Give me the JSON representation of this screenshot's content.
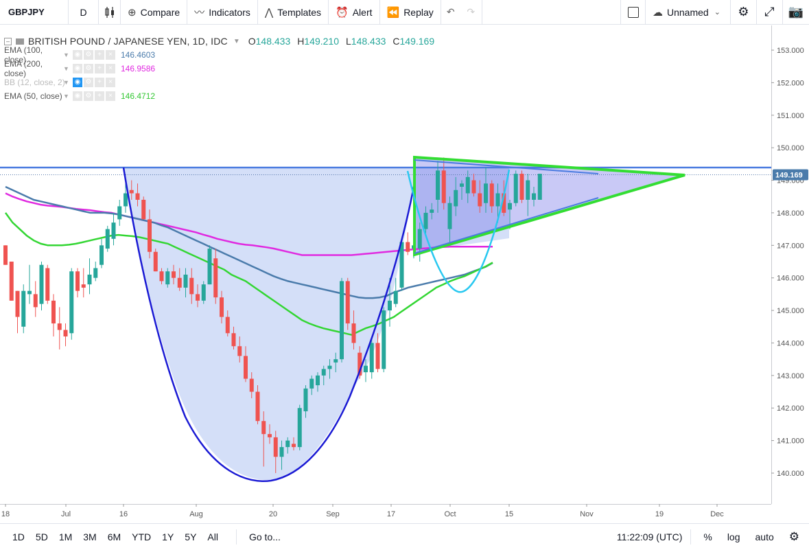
{
  "toolbar": {
    "symbol": "GBPJPY",
    "interval": "D",
    "compare": "Compare",
    "indicators": "Indicators",
    "templates": "Templates",
    "alert": "Alert",
    "replay": "Replay",
    "layout_name": "Unnamed"
  },
  "legend": {
    "title": "BRITISH POUND / JAPANESE YEN, 1D, IDC",
    "o_label": "O",
    "o": "148.433",
    "h_label": "H",
    "h": "149.210",
    "l_label": "L",
    "l": "148.433",
    "c_label": "C",
    "c": "149.169",
    "studies": [
      {
        "name": "EMA (100, close)",
        "value": "146.4603",
        "color": "#4a7bab"
      },
      {
        "name": "EMA (200, close)",
        "value": "146.9586",
        "color": "#e029e0"
      },
      {
        "name": "BB (12, close, 2)",
        "value": "",
        "color": "#bbbbbb"
      },
      {
        "name": "EMA (50, close)",
        "value": "146.4712",
        "color": "#33d633"
      }
    ]
  },
  "bottombar": {
    "ranges": [
      "1D",
      "5D",
      "1M",
      "3M",
      "6M",
      "YTD",
      "1Y",
      "5Y",
      "All"
    ],
    "goto": "Go to...",
    "time": "11:22:09 (UTC)",
    "percent": "%",
    "log": "log",
    "auto": "auto"
  },
  "chart_data": {
    "type": "candlestick",
    "symbol": "GBPJPY",
    "ylim": [
      139.3,
      153.6
    ],
    "y_ticks": [
      "153.000",
      "152.000",
      "151.000",
      "150.000",
      "149.000",
      "148.000",
      "147.000",
      "146.000",
      "145.000",
      "144.000",
      "143.000",
      "142.000",
      "141.000",
      "140.000"
    ],
    "x_ticks": [
      "18",
      "Jul",
      "16",
      "Aug",
      "20",
      "Sep",
      "17",
      "Oct",
      "15",
      "Nov",
      "19",
      "Dec"
    ],
    "last_price": "149.169",
    "colors": {
      "up": "#26a69a",
      "down": "#ef5350",
      "ema100": "#4a7bab",
      "ema200": "#e029e0",
      "ema50": "#33d633",
      "cup": "#1a1ad4",
      "handle": "#29c8f0",
      "triangle": "#33dd33",
      "resistance": "#4a7be0"
    },
    "candles": [
      [
        147.0,
        147.0,
        146.4,
        146.4
      ],
      [
        146.5,
        146.5,
        145.3,
        145.3
      ],
      [
        145.6,
        145.6,
        144.3,
        144.8
      ],
      [
        144.5,
        145.8,
        144.3,
        145.6
      ],
      [
        145.5,
        146.4,
        145.2,
        145.6
      ],
      [
        145.5,
        145.9,
        144.8,
        145.1
      ],
      [
        145.2,
        146.5,
        145.0,
        146.4
      ],
      [
        146.3,
        146.4,
        145.2,
        145.3
      ],
      [
        145.3,
        145.5,
        144.2,
        144.6
      ],
      [
        144.6,
        145.1,
        143.8,
        144.4
      ],
      [
        144.4,
        144.6,
        143.9,
        144.2
      ],
      [
        144.3,
        146.3,
        144.1,
        146.2
      ],
      [
        146.2,
        146.3,
        145.4,
        145.6
      ],
      [
        145.8,
        146.3,
        145.4,
        145.7
      ],
      [
        145.8,
        146.6,
        145.5,
        146.1
      ],
      [
        146.0,
        146.5,
        145.9,
        146.3
      ],
      [
        146.4,
        147.2,
        146.3,
        147.0
      ],
      [
        146.9,
        147.6,
        146.8,
        147.5
      ],
      [
        147.2,
        148.0,
        147.0,
        147.7
      ],
      [
        147.8,
        148.4,
        147.6,
        148.2
      ],
      [
        148.2,
        149.0,
        148.0,
        148.6
      ],
      [
        148.7,
        149.0,
        148.4,
        148.6
      ],
      [
        148.6,
        148.9,
        148.2,
        148.4
      ],
      [
        148.4,
        148.5,
        147.8,
        147.8
      ],
      [
        147.8,
        148.1,
        146.6,
        146.8
      ],
      [
        146.8,
        146.9,
        146.2,
        146.2
      ],
      [
        146.2,
        146.3,
        145.8,
        145.9
      ],
      [
        145.8,
        146.3,
        145.7,
        146.2
      ],
      [
        146.2,
        146.4,
        145.8,
        146.0
      ],
      [
        146.0,
        146.3,
        145.6,
        145.7
      ],
      [
        145.7,
        146.3,
        145.4,
        146.1
      ],
      [
        146.0,
        146.3,
        145.2,
        145.5
      ],
      [
        145.5,
        145.8,
        145.1,
        145.3
      ],
      [
        145.3,
        145.9,
        145.2,
        145.8
      ],
      [
        145.8,
        147.0,
        145.8,
        146.9
      ],
      [
        146.6,
        146.9,
        145.2,
        145.4
      ],
      [
        145.4,
        145.6,
        144.6,
        144.8
      ],
      [
        144.8,
        145.0,
        144.2,
        144.3
      ],
      [
        144.3,
        144.5,
        143.8,
        143.9
      ],
      [
        143.9,
        144.2,
        143.4,
        143.6
      ],
      [
        143.6,
        143.9,
        142.8,
        142.9
      ],
      [
        142.9,
        143.1,
        142.3,
        142.5
      ],
      [
        142.5,
        142.7,
        141.5,
        141.6
      ],
      [
        141.6,
        141.9,
        140.2,
        141.2
      ],
      [
        141.2,
        141.5,
        140.9,
        141.1
      ],
      [
        141.1,
        141.3,
        140.0,
        140.5
      ],
      [
        140.5,
        141.0,
        140.1,
        140.8
      ],
      [
        140.8,
        141.1,
        140.6,
        141.0
      ],
      [
        140.9,
        141.1,
        140.7,
        140.8
      ],
      [
        140.8,
        142.1,
        140.7,
        142.0
      ],
      [
        141.9,
        142.7,
        141.7,
        142.6
      ],
      [
        142.6,
        143.0,
        142.4,
        142.9
      ],
      [
        142.7,
        143.1,
        142.5,
        143.0
      ],
      [
        143.0,
        143.3,
        142.7,
        143.2
      ],
      [
        143.2,
        143.5,
        142.9,
        143.3
      ],
      [
        143.4,
        143.7,
        143.1,
        143.5
      ],
      [
        143.5,
        146.0,
        143.4,
        145.9
      ],
      [
        145.9,
        146.0,
        144.4,
        144.6
      ],
      [
        144.6,
        145.0,
        143.8,
        144.0
      ],
      [
        143.7,
        143.9,
        142.9,
        143.0
      ],
      [
        143.1,
        143.5,
        142.8,
        143.3
      ],
      [
        143.1,
        144.2,
        142.9,
        144.0
      ],
      [
        144.0,
        144.3,
        143.1,
        143.2
      ],
      [
        143.2,
        145.1,
        143.1,
        145.0
      ],
      [
        145.0,
        146.0,
        144.5,
        145.3
      ],
      [
        145.2,
        146.0,
        145.1,
        145.6
      ],
      [
        145.7,
        147.2,
        145.6,
        147.1
      ],
      [
        147.1,
        147.4,
        146.7,
        146.8
      ],
      [
        146.9,
        147.2,
        146.6,
        147.0
      ],
      [
        146.9,
        147.7,
        146.5,
        147.5
      ],
      [
        147.5,
        148.2,
        147.3,
        148.0
      ],
      [
        148.0,
        148.3,
        147.8,
        148.1
      ],
      [
        148.4,
        149.6,
        148.0,
        149.3
      ],
      [
        149.3,
        149.7,
        148.1,
        148.3
      ],
      [
        147.5,
        148.5,
        147.1,
        148.3
      ],
      [
        148.2,
        149.1,
        147.9,
        148.7
      ],
      [
        148.8,
        149.0,
        148.4,
        148.9
      ],
      [
        148.6,
        149.3,
        148.3,
        149.1
      ],
      [
        149.0,
        149.2,
        148.5,
        148.6
      ],
      [
        148.6,
        149.0,
        148.0,
        148.2
      ],
      [
        148.3,
        149.4,
        148.0,
        148.9
      ],
      [
        148.9,
        149.0,
        148.0,
        148.2
      ],
      [
        148.2,
        148.9,
        147.7,
        148.6
      ],
      [
        148.6,
        149.0,
        147.9,
        148.0
      ],
      [
        148.1,
        148.4,
        147.5,
        148.3
      ],
      [
        148.3,
        149.3,
        148.2,
        149.2
      ],
      [
        149.2,
        149.3,
        148.3,
        148.4
      ],
      [
        148.4,
        149.2,
        147.9,
        149.0
      ],
      [
        148.4,
        148.8,
        148.2,
        148.6
      ],
      [
        148.4,
        149.2,
        148.4,
        149.2
      ]
    ],
    "ema50": [
      148.0,
      147.7,
      147.5,
      147.3,
      147.15,
      147.05,
      147.0,
      147.0,
      147.0,
      147.02,
      147.05,
      147.1,
      147.15,
      147.2,
      147.25,
      147.3,
      147.32,
      147.3,
      147.28,
      147.25,
      147.2,
      147.15,
      147.1,
      147.05,
      146.95,
      146.85,
      146.75,
      146.65,
      146.55,
      146.45,
      146.35,
      146.25,
      146.1,
      146.0,
      145.9,
      145.75,
      145.6,
      145.45,
      145.3,
      145.15,
      145.0,
      144.85,
      144.7,
      144.6,
      144.52,
      144.45,
      144.4,
      144.35,
      144.3,
      144.25,
      144.35,
      144.45,
      144.52,
      144.6,
      144.7,
      144.8,
      144.95,
      145.1,
      145.25,
      145.4,
      145.55,
      145.7,
      145.8,
      145.9,
      145.98,
      146.05,
      146.15,
      146.25,
      146.35,
      146.47
    ],
    "ema100": [
      148.8,
      148.7,
      148.6,
      148.5,
      148.4,
      148.35,
      148.3,
      148.25,
      148.2,
      148.15,
      148.1,
      148.05,
      148.0,
      148.0,
      148.0,
      147.98,
      147.95,
      147.9,
      147.85,
      147.8,
      147.75,
      147.7,
      147.62,
      147.55,
      147.45,
      147.35,
      147.25,
      147.15,
      147.05,
      146.95,
      146.85,
      146.75,
      146.65,
      146.55,
      146.45,
      146.35,
      146.25,
      146.15,
      146.05,
      145.97,
      145.9,
      145.85,
      145.8,
      145.75,
      145.7,
      145.65,
      145.6,
      145.55,
      145.5,
      145.45,
      145.4,
      145.38,
      145.38,
      145.4,
      145.45,
      145.55,
      145.62,
      145.7,
      145.75,
      145.8,
      145.85,
      145.9,
      145.95,
      146.0,
      146.05,
      146.1,
      146.18,
      146.26,
      146.34,
      146.46
    ],
    "ema200": [
      148.6,
      148.5,
      148.42,
      148.35,
      148.3,
      148.25,
      148.22,
      148.2,
      148.18,
      148.15,
      148.12,
      148.1,
      148.08,
      148.05,
      148.02,
      148.0,
      147.95,
      147.9,
      147.85,
      147.8,
      147.75,
      147.7,
      147.65,
      147.6,
      147.55,
      147.5,
      147.45,
      147.4,
      147.33,
      147.27,
      147.2,
      147.15,
      147.1,
      147.05,
      147.02,
      147.0,
      146.97,
      146.94,
      146.9,
      146.85,
      146.8,
      146.75,
      146.7,
      146.7,
      146.7,
      146.7,
      146.7,
      146.7,
      146.7,
      146.7,
      146.72,
      146.74,
      146.76,
      146.78,
      146.8,
      146.82,
      146.84,
      146.86,
      146.88,
      146.9,
      146.92,
      146.94,
      146.95,
      146.96,
      146.96,
      146.96,
      146.96,
      146.96,
      146.96,
      146.96
    ]
  }
}
